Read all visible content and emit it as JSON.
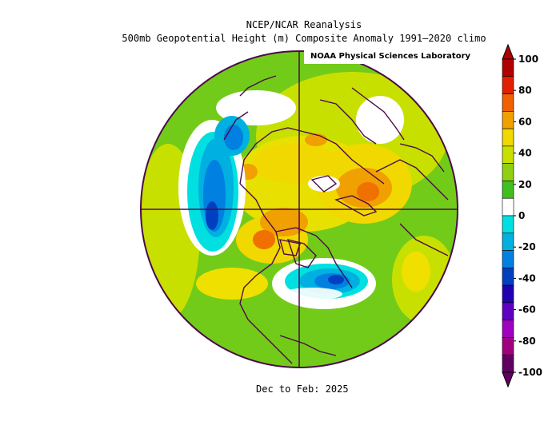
{
  "header": {
    "line1": "NCEP/NCAR Reanalysis",
    "line2": "500mb Geopotential Height (m) Composite Anomaly 1991–2020 climo",
    "credit": "NOAA Physical Sciences Laboratory"
  },
  "footer": {
    "period": "Dec to Feb: 2025"
  },
  "map": {
    "projection": "north-polar-stereographic",
    "variable": "500mb geopotential height anomaly",
    "units": "m",
    "features": [
      "positive anomaly ridge over northern Eurasia",
      "negative anomaly trough over eastern North America / western Atlantic",
      "negative anomaly trough over north Pacific",
      "positive anomaly over Arctic / Greenland"
    ]
  },
  "colorbar": {
    "levels": [
      "100",
      "80",
      "60",
      "40",
      "20",
      "0",
      "-20",
      "-40",
      "-60",
      "-80",
      "-100"
    ],
    "colors": [
      "#b00000",
      "#e02000",
      "#f06000",
      "#f0a000",
      "#f0d800",
      "#c8e000",
      "#90d010",
      "#40c020",
      "#ffffff",
      "#00e0e0",
      "#00b0e0",
      "#0080e0",
      "#0040c0",
      "#2000b0",
      "#6000c0",
      "#a000c0",
      "#a00080",
      "#600060"
    ]
  }
}
